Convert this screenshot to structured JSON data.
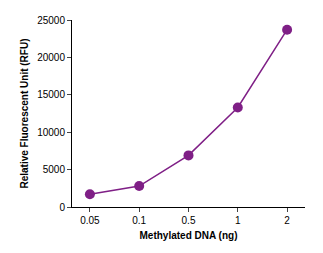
{
  "chart_data": {
    "type": "line",
    "x_label": "Methylated DNA (ng)",
    "y_label": "Relative Fluorescent Unit (RFU)",
    "categories": [
      "0.05",
      "0.1",
      "0.5",
      "1",
      "2"
    ],
    "values": [
      1700,
      2800,
      6900,
      13300,
      23700
    ],
    "color": "#7f1f86",
    "marker": "circle",
    "ylim": [
      0,
      25000
    ],
    "yticks": [
      0,
      5000,
      10000,
      15000,
      20000,
      25000
    ],
    "grid": false
  }
}
